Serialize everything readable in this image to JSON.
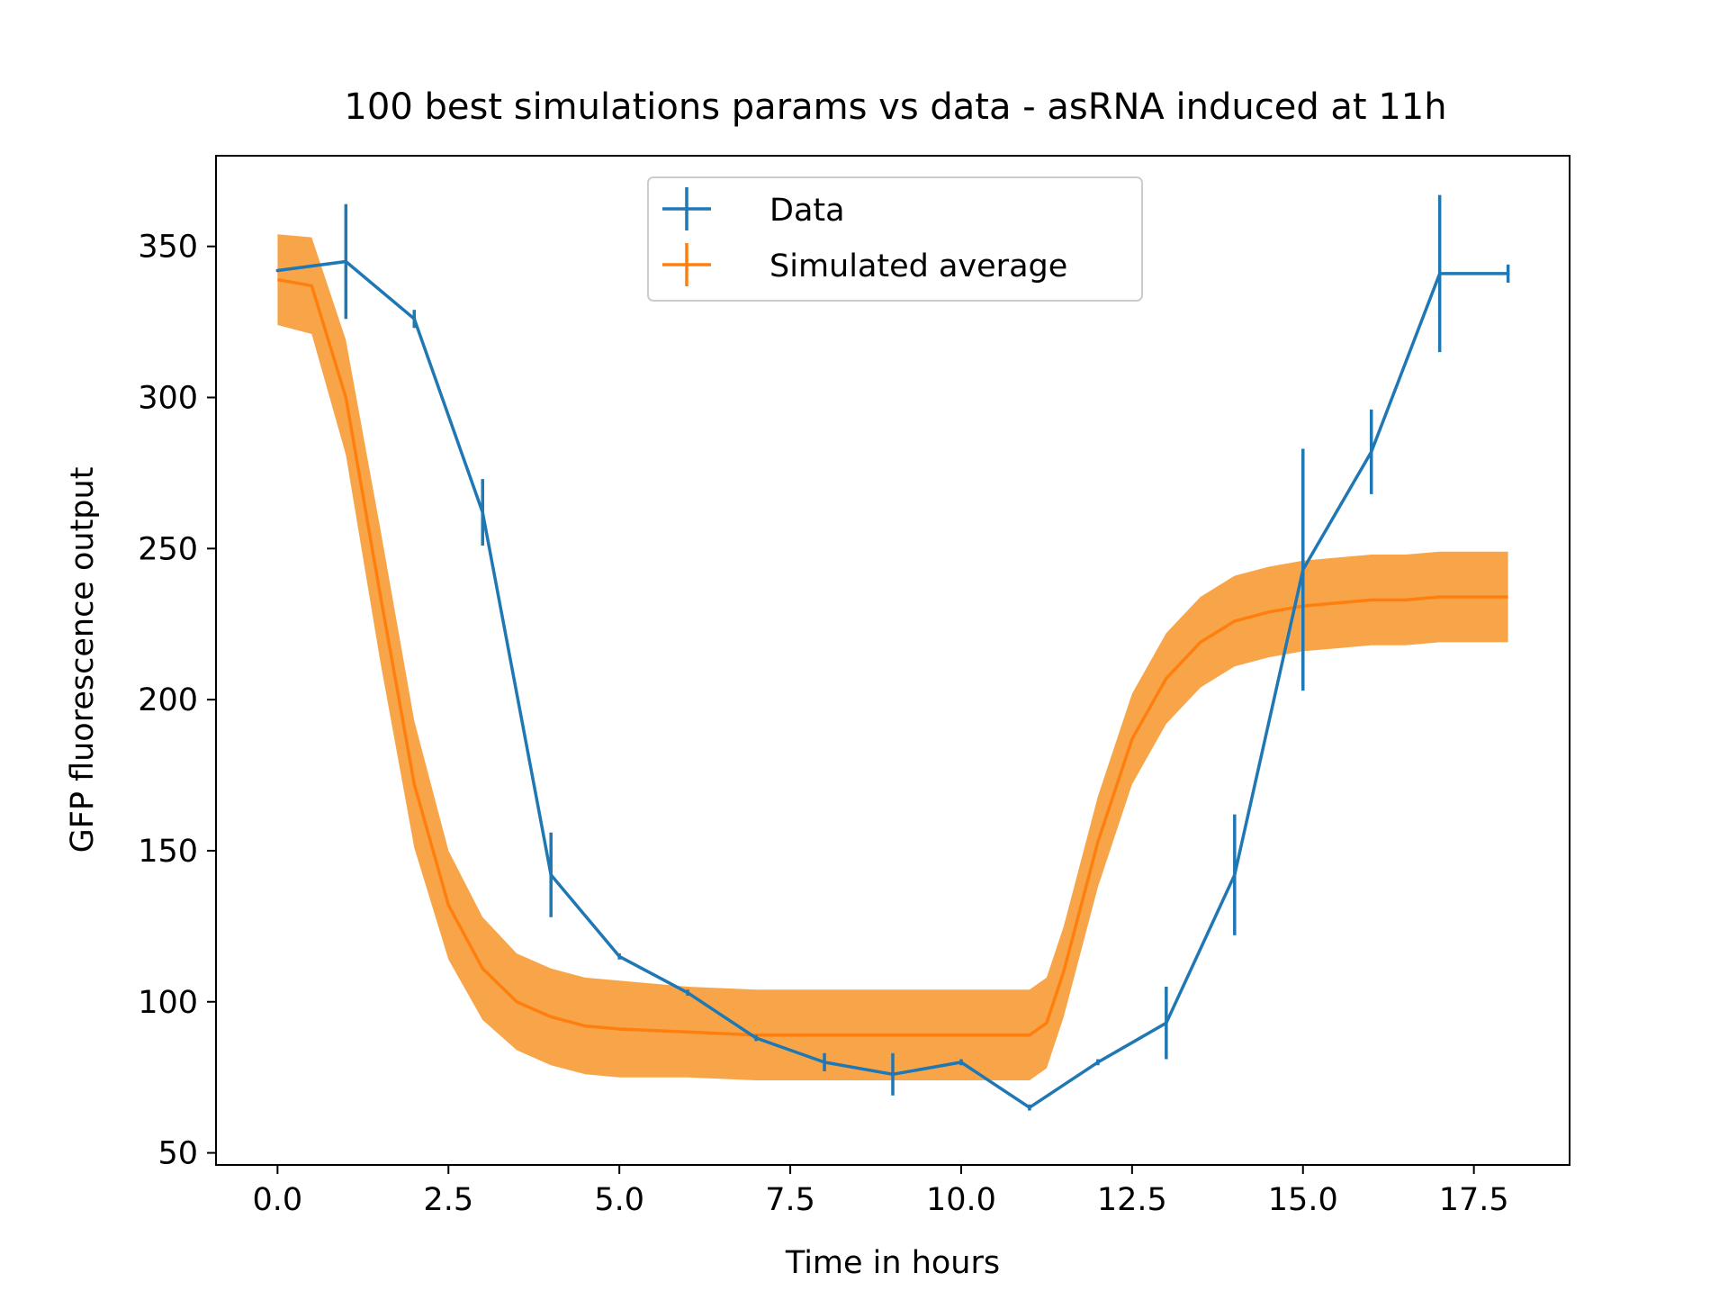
{
  "chart_data": {
    "type": "line",
    "title": "100 best simulations params vs data - asRNA induced at 11h",
    "xlabel": "Time in hours",
    "ylabel": "GFP fluorescence output",
    "xlim": [
      -0.9,
      18.9
    ],
    "ylim": [
      46,
      380
    ],
    "xticks": [
      0,
      2.5,
      5,
      7.5,
      10,
      12.5,
      15,
      17.5
    ],
    "xtick_labels": [
      "0.0",
      "2.5",
      "5.0",
      "7.5",
      "10.0",
      "12.5",
      "15.0",
      "17.5"
    ],
    "yticks": [
      50,
      100,
      150,
      200,
      250,
      300,
      350
    ],
    "ytick_labels": [
      "50",
      "100",
      "150",
      "200",
      "250",
      "300",
      "350"
    ],
    "grid": false,
    "legend": {
      "position": "upper center",
      "entries": [
        "Data",
        "Simulated average"
      ]
    },
    "series": [
      {
        "name": "Data",
        "color": "#1f77b4",
        "style": "line-with-errorbars",
        "x": [
          0,
          1,
          2,
          3,
          4,
          5,
          6,
          7,
          8,
          9,
          10,
          11,
          12,
          13,
          14,
          15,
          16,
          17,
          18
        ],
        "y": [
          342,
          345,
          326,
          262,
          142,
          115,
          103,
          88,
          80,
          76,
          80,
          65,
          80,
          93,
          142,
          243,
          282,
          341,
          341
        ],
        "yerr": [
          0,
          19,
          3,
          11,
          14,
          1,
          1,
          1,
          3,
          7,
          1,
          1,
          1,
          12,
          20,
          40,
          14,
          26,
          3
        ]
      },
      {
        "name": "Simulated average",
        "color": "#ff7f0e",
        "band_color": "#f8a54a",
        "style": "line-with-band",
        "x": [
          0,
          0.5,
          1,
          1.5,
          2,
          2.5,
          3,
          3.5,
          4,
          4.5,
          5,
          6,
          7,
          8,
          9,
          10,
          11,
          11.25,
          11.5,
          12,
          12.5,
          13,
          13.5,
          14,
          14.5,
          15,
          15.5,
          16,
          16.5,
          17,
          17.5,
          18
        ],
        "y": [
          339,
          337,
          300,
          235,
          172,
          132,
          111,
          100,
          95,
          92,
          91,
          90,
          89,
          89,
          89,
          89,
          89,
          93,
          110,
          153,
          187,
          207,
          219,
          226,
          229,
          231,
          232,
          233,
          233,
          234,
          234,
          234
        ],
        "band_halfwidth": [
          15,
          16,
          19,
          22,
          21,
          18,
          17,
          16,
          16,
          16,
          16,
          15,
          15,
          15,
          15,
          15,
          15,
          15,
          15,
          15,
          15,
          15,
          15,
          15,
          15,
          15,
          15,
          15,
          15,
          15,
          15,
          15
        ]
      }
    ]
  }
}
